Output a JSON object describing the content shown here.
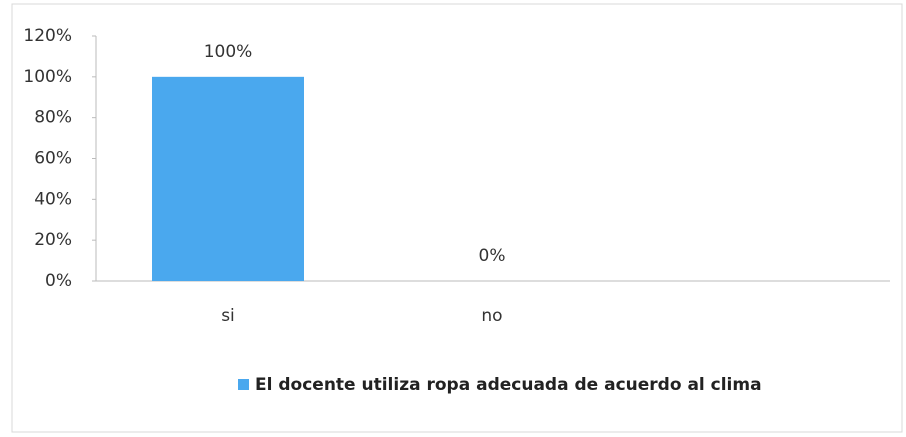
{
  "chart_data": {
    "type": "bar",
    "categories": [
      "si",
      "no"
    ],
    "series": [
      {
        "name": "El docente utiliza ropa adecuada de acuerdo al clima",
        "color": "#4aa8ee",
        "values": [
          100,
          0
        ],
        "value_labels": [
          "100%",
          "0%"
        ]
      }
    ],
    "ylim": [
      0,
      120
    ],
    "yticks": [
      {
        "value": 0,
        "label": "0%"
      },
      {
        "value": 20,
        "label": "20%"
      },
      {
        "value": 40,
        "label": "40%"
      },
      {
        "value": 60,
        "label": "60%"
      },
      {
        "value": 80,
        "label": "80%"
      },
      {
        "value": 100,
        "label": "100%"
      },
      {
        "value": 120,
        "label": "120%"
      }
    ],
    "legend": "bottom"
  }
}
